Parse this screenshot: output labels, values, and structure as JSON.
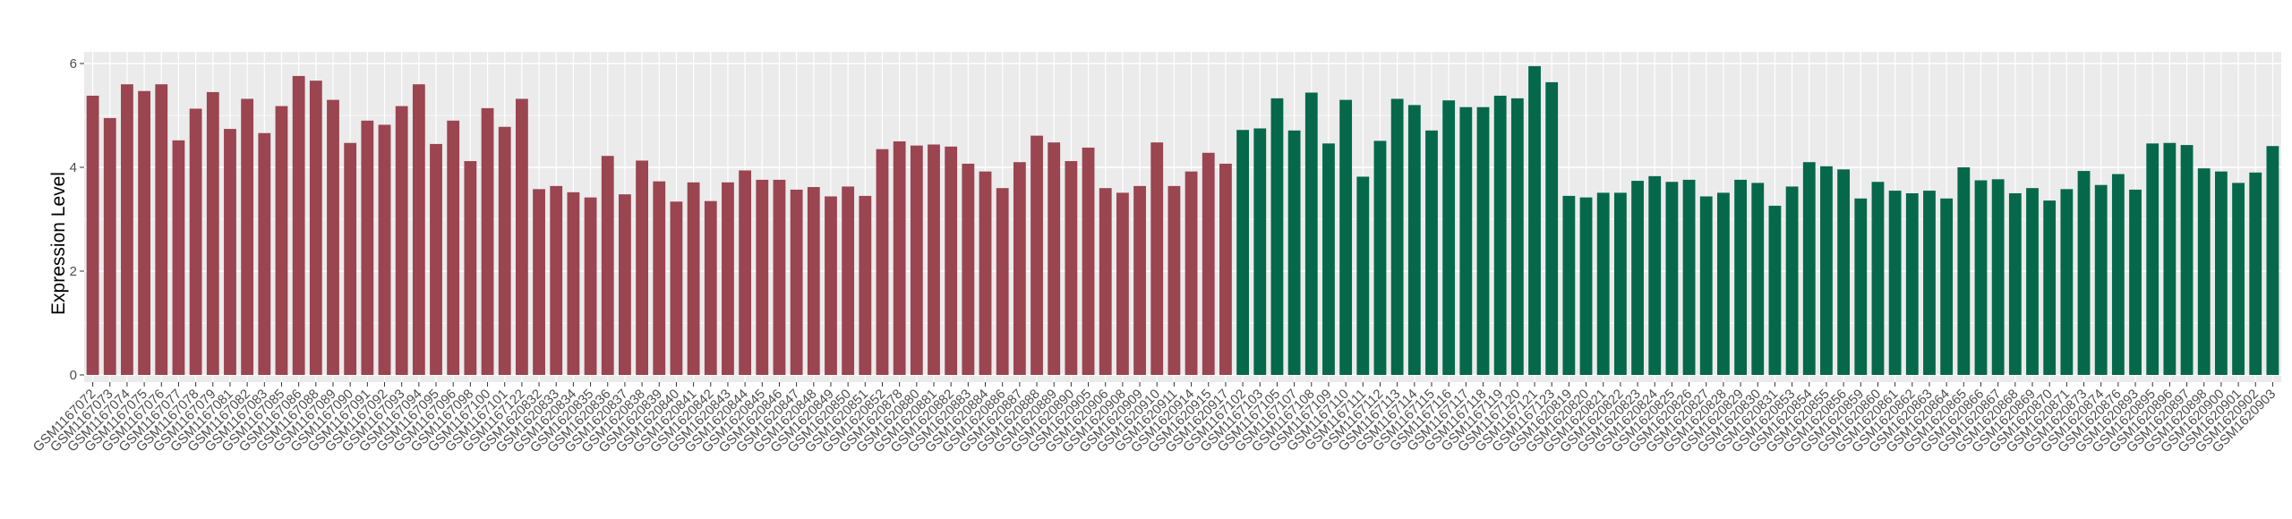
{
  "chart_data": {
    "type": "bar",
    "ylabel": "Expression Level",
    "xlabel": "",
    "ylim": [
      0,
      6.3
    ],
    "yticks": [
      0,
      2,
      4,
      6
    ],
    "grid": true,
    "legend": "none",
    "colors": {
      "group1": "#9a4550",
      "group2": "#06684a",
      "panel": "#ebebeb",
      "grid": "#ffffff"
    },
    "categories": [
      "GSM1167072",
      "GSM1167073",
      "GSM1167074",
      "GSM1167075",
      "GSM1167076",
      "GSM1167077",
      "GSM1167078",
      "GSM1167079",
      "GSM1167081",
      "GSM1167082",
      "GSM1167083",
      "GSM1167085",
      "GSM1167086",
      "GSM1167088",
      "GSM1167089",
      "GSM1167090",
      "GSM1167091",
      "GSM1167092",
      "GSM1167093",
      "GSM1167094",
      "GSM1167095",
      "GSM1167096",
      "GSM1167098",
      "GSM1167100",
      "GSM1167101",
      "GSM1167122",
      "GSM1620832",
      "GSM1620833",
      "GSM1620834",
      "GSM1620835",
      "GSM1620836",
      "GSM1620837",
      "GSM1620838",
      "GSM1620839",
      "GSM1620840",
      "GSM1620841",
      "GSM1620842",
      "GSM1620843",
      "GSM1620844",
      "GSM1620845",
      "GSM1620846",
      "GSM1620847",
      "GSM1620848",
      "GSM1620849",
      "GSM1620850",
      "GSM1620851",
      "GSM1620852",
      "GSM1620878",
      "GSM1620880",
      "GSM1620881",
      "GSM1620882",
      "GSM1620883",
      "GSM1620884",
      "GSM1620886",
      "GSM1620887",
      "GSM1620888",
      "GSM1620889",
      "GSM1620890",
      "GSM1620905",
      "GSM1620906",
      "GSM1620908",
      "GSM1620909",
      "GSM1620910",
      "GSM1620911",
      "GSM1620914",
      "GSM1620915",
      "GSM1620917",
      "GSM1167102",
      "GSM1167103",
      "GSM1167105",
      "GSM1167107",
      "GSM1167108",
      "GSM1167109",
      "GSM1167110",
      "GSM1167111",
      "GSM1167112",
      "GSM1167113",
      "GSM1167114",
      "GSM1167115",
      "GSM1167116",
      "GSM1167117",
      "GSM1167118",
      "GSM1167119",
      "GSM1167120",
      "GSM1167121",
      "GSM1167123",
      "GSM1620819",
      "GSM1620820",
      "GSM1620821",
      "GSM1620822",
      "GSM1620823",
      "GSM1620824",
      "GSM1620825",
      "GSM1620826",
      "GSM1620827",
      "GSM1620828",
      "GSM1620829",
      "GSM1620830",
      "GSM1620831",
      "GSM1620853",
      "GSM1620854",
      "GSM1620855",
      "GSM1620856",
      "GSM1620859",
      "GSM1620860",
      "GSM1620861",
      "GSM1620862",
      "GSM1620863",
      "GSM1620864",
      "GSM1620865",
      "GSM1620866",
      "GSM1620867",
      "GSM1620868",
      "GSM1620869",
      "GSM1620870",
      "GSM1620871",
      "GSM1620873",
      "GSM1620874",
      "GSM1620876",
      "GSM1620893",
      "GSM1620895",
      "GSM1620896",
      "GSM1620897",
      "GSM1620898",
      "GSM1620900",
      "GSM1620901",
      "GSM1620902",
      "GSM1620903"
    ],
    "values": [
      5.38,
      4.95,
      5.6,
      5.47,
      5.6,
      4.52,
      5.13,
      5.45,
      4.74,
      5.32,
      4.66,
      5.18,
      5.76,
      5.67,
      5.3,
      4.47,
      4.9,
      4.82,
      5.18,
      5.6,
      4.45,
      4.9,
      4.12,
      5.14,
      4.78,
      5.32,
      3.58,
      3.64,
      3.52,
      3.42,
      4.22,
      3.48,
      4.13,
      3.73,
      3.34,
      3.71,
      3.35,
      3.71,
      3.94,
      3.76,
      3.76,
      3.57,
      3.62,
      3.44,
      3.63,
      3.45,
      4.35,
      4.5,
      4.42,
      4.44,
      4.4,
      4.07,
      3.92,
      3.6,
      4.1,
      4.61,
      4.48,
      4.12,
      4.38,
      3.6,
      3.51,
      3.64,
      4.48,
      3.64,
      3.92,
      4.28,
      4.07,
      4.72,
      4.75,
      5.33,
      4.71,
      5.44,
      4.46,
      5.3,
      3.82,
      4.51,
      5.32,
      5.2,
      4.71,
      5.29,
      5.16,
      5.16,
      5.38,
      5.33,
      5.95,
      5.64,
      3.45,
      3.42,
      3.51,
      3.51,
      3.74,
      3.83,
      3.72,
      3.76,
      3.44,
      3.51,
      3.76,
      3.7,
      3.26,
      3.63,
      4.1,
      4.02,
      3.96,
      3.4,
      3.72,
      3.55,
      3.5,
      3.55,
      3.4,
      4.0,
      3.75,
      3.77,
      3.5,
      3.6,
      3.36,
      3.58,
      3.93,
      3.66,
      3.87,
      3.57,
      4.46,
      4.47,
      4.43,
      3.98,
      3.92,
      3.7,
      3.9,
      4.41
    ],
    "group_split_index": 67
  }
}
